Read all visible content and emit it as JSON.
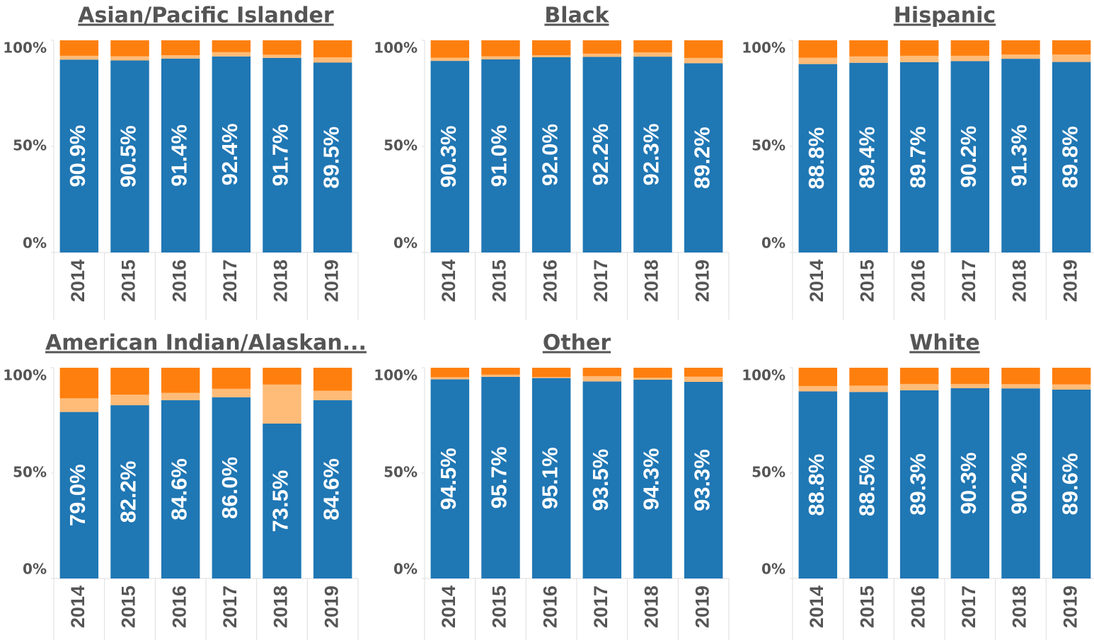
{
  "chart_data": [
    {
      "type": "bar",
      "stacked": true,
      "title": "Asian/Pacific Islander",
      "categories": [
        "2014",
        "2015",
        "2016",
        "2017",
        "2018",
        "2019"
      ],
      "series": [
        {
          "color": "#1f77b4",
          "values": [
            90.9,
            90.5,
            91.4,
            92.4,
            91.7,
            89.5
          ],
          "value_labels": [
            "90.9%",
            "90.5%",
            "91.4%",
            "92.4%",
            "91.7%",
            "89.5%"
          ]
        },
        {
          "color": "#ffbb78",
          "values": [
            1.8,
            2.0,
            1.6,
            2.0,
            1.5,
            2.5
          ]
        },
        {
          "color": "#ff7f0e",
          "values": [
            7.3,
            7.5,
            7.0,
            5.6,
            6.8,
            8.0
          ]
        }
      ],
      "ylim": [
        0,
        100
      ],
      "yticks": [
        {
          "value": 0,
          "label": "0%"
        },
        {
          "value": 50,
          "label": "50%"
        },
        {
          "value": 100,
          "label": "100%"
        }
      ]
    },
    {
      "type": "bar",
      "stacked": true,
      "title": "Black",
      "categories": [
        "2014",
        "2015",
        "2016",
        "2017",
        "2018",
        "2019"
      ],
      "series": [
        {
          "color": "#1f77b4",
          "values": [
            90.3,
            91.0,
            92.0,
            92.2,
            92.3,
            89.2
          ],
          "value_labels": [
            "90.3%",
            "91.0%",
            "92.0%",
            "92.2%",
            "92.3%",
            "89.2%"
          ]
        },
        {
          "color": "#ffbb78",
          "values": [
            1.5,
            1.5,
            1.0,
            1.5,
            2.0,
            2.5
          ]
        },
        {
          "color": "#ff7f0e",
          "values": [
            8.2,
            7.5,
            7.0,
            6.3,
            5.7,
            8.3
          ]
        }
      ],
      "ylim": [
        0,
        100
      ],
      "yticks": [
        {
          "value": 0,
          "label": "0%"
        },
        {
          "value": 50,
          "label": "50%"
        },
        {
          "value": 100,
          "label": "100%"
        }
      ]
    },
    {
      "type": "bar",
      "stacked": true,
      "title": "Hispanic",
      "categories": [
        "2014",
        "2015",
        "2016",
        "2017",
        "2018",
        "2019"
      ],
      "series": [
        {
          "color": "#1f77b4",
          "values": [
            88.8,
            89.4,
            89.7,
            90.2,
            91.3,
            89.8
          ],
          "value_labels": [
            "88.8%",
            "89.4%",
            "89.7%",
            "90.2%",
            "91.3%",
            "89.8%"
          ]
        },
        {
          "color": "#ffbb78",
          "values": [
            3.0,
            3.0,
            3.0,
            2.5,
            2.0,
            3.5
          ]
        },
        {
          "color": "#ff7f0e",
          "values": [
            8.2,
            7.6,
            7.3,
            7.3,
            6.7,
            6.7
          ]
        }
      ],
      "ylim": [
        0,
        100
      ],
      "yticks": [
        {
          "value": 0,
          "label": "0%"
        },
        {
          "value": 50,
          "label": "50%"
        },
        {
          "value": 100,
          "label": "100%"
        }
      ]
    },
    {
      "type": "bar",
      "stacked": true,
      "title": "American Indian/Alaskan...",
      "categories": [
        "2014",
        "2015",
        "2016",
        "2017",
        "2018",
        "2019"
      ],
      "series": [
        {
          "color": "#1f77b4",
          "values": [
            79.0,
            82.2,
            84.6,
            86.0,
            73.5,
            84.6
          ],
          "value_labels": [
            "79.0%",
            "82.2%",
            "84.6%",
            "86.0%",
            "73.5%",
            "84.6%"
          ]
        },
        {
          "color": "#ffbb78",
          "values": [
            6.5,
            5.0,
            3.5,
            4.0,
            18.5,
            4.5
          ]
        },
        {
          "color": "#ff7f0e",
          "values": [
            14.5,
            12.8,
            11.9,
            10.0,
            8.0,
            10.9
          ]
        }
      ],
      "ylim": [
        0,
        100
      ],
      "yticks": [
        {
          "value": 0,
          "label": "0%"
        },
        {
          "value": 50,
          "label": "50%"
        },
        {
          "value": 100,
          "label": "100%"
        }
      ]
    },
    {
      "type": "bar",
      "stacked": true,
      "title": "Other",
      "categories": [
        "2014",
        "2015",
        "2016",
        "2017",
        "2018",
        "2019"
      ],
      "series": [
        {
          "color": "#1f77b4",
          "values": [
            94.5,
            95.7,
            95.1,
            93.5,
            94.3,
            93.3
          ],
          "value_labels": [
            "94.5%",
            "95.7%",
            "95.1%",
            "93.5%",
            "94.3%",
            "93.3%"
          ]
        },
        {
          "color": "#ffbb78",
          "values": [
            1.0,
            1.0,
            0.5,
            2.5,
            1.0,
            2.5
          ]
        },
        {
          "color": "#ff7f0e",
          "values": [
            4.5,
            3.3,
            4.4,
            4.0,
            4.7,
            4.2
          ]
        }
      ],
      "ylim": [
        0,
        100
      ],
      "yticks": [
        {
          "value": 0,
          "label": "0%"
        },
        {
          "value": 50,
          "label": "50%"
        },
        {
          "value": 100,
          "label": "100%"
        }
      ]
    },
    {
      "type": "bar",
      "stacked": true,
      "title": "White",
      "categories": [
        "2014",
        "2015",
        "2016",
        "2017",
        "2018",
        "2019"
      ],
      "series": [
        {
          "color": "#1f77b4",
          "values": [
            88.8,
            88.5,
            89.3,
            90.3,
            90.2,
            89.6
          ],
          "value_labels": [
            "88.8%",
            "88.5%",
            "89.3%",
            "90.3%",
            "90.2%",
            "89.6%"
          ]
        },
        {
          "color": "#ffbb78",
          "values": [
            2.5,
            3.0,
            3.0,
            2.0,
            2.0,
            2.5
          ]
        },
        {
          "color": "#ff7f0e",
          "values": [
            8.7,
            8.5,
            7.7,
            7.7,
            7.8,
            7.9
          ]
        }
      ],
      "ylim": [
        0,
        100
      ],
      "yticks": [
        {
          "value": 0,
          "label": "0%"
        },
        {
          "value": 50,
          "label": "50%"
        },
        {
          "value": 100,
          "label": "100%"
        }
      ]
    }
  ]
}
